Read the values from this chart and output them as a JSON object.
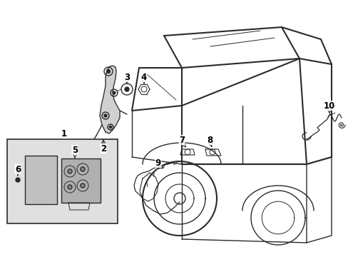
{
  "background_color": "#ffffff",
  "line_color": "#2a2a2a",
  "label_color": "#000000",
  "box_fill": "#e0e0e0",
  "figsize": [
    4.89,
    3.6
  ],
  "dpi": 100
}
